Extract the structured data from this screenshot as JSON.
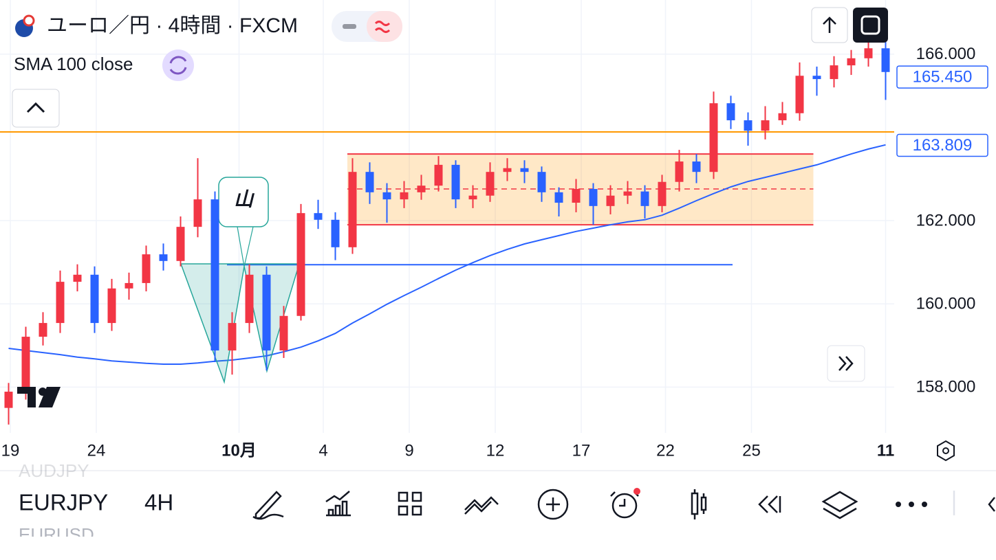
{
  "header": {
    "title": "ユーロ／円 · 4時間 · FXCM"
  },
  "toolbar": {
    "symbol": "EURJPY",
    "interval": "4H",
    "watchlist": [
      "AUDJPY",
      "EURUSD"
    ]
  },
  "chart_data": {
    "type": "candlestick",
    "up_color": "#f23645",
    "down_color": "#2962ff",
    "grid": true,
    "ylim": [
      156.9,
      167.3
    ],
    "yticks": [
      {
        "value": 158,
        "label": "158.000"
      },
      {
        "value": 160,
        "label": "160.000"
      },
      {
        "value": 162,
        "label": "162.000"
      },
      {
        "value": 166,
        "label": "166.000"
      }
    ],
    "xlim": [
      -0.5,
      51.5
    ],
    "xticks": [
      {
        "value": 0.1,
        "label": "19"
      },
      {
        "value": 5.1,
        "label": "24"
      },
      {
        "value": 13.4,
        "label": "10月",
        "strong": true
      },
      {
        "value": 18.3,
        "label": "4"
      },
      {
        "value": 23.3,
        "label": "9"
      },
      {
        "value": 28.3,
        "label": "12"
      },
      {
        "value": 33.3,
        "label": "17"
      },
      {
        "value": 38.2,
        "label": "22"
      },
      {
        "value": 43.2,
        "label": "25"
      },
      {
        "value": 51.0,
        "label": "11",
        "strong": true
      }
    ],
    "open": [
      157.5,
      157.89,
      159.21,
      159.54,
      160.53,
      160.7,
      159.54,
      160.37,
      160.5,
      161.19,
      161.03,
      161.85,
      162.51,
      158.88,
      159.54,
      160.7,
      158.88,
      159.71,
      162.18,
      162.02,
      161.36,
      163.17,
      162.68,
      162.51,
      162.68,
      162.84,
      163.34,
      162.51,
      162.6,
      163.17,
      163.26,
      163.17,
      162.68,
      162.43,
      162.76,
      162.35,
      162.6,
      162.7,
      162.35,
      162.93,
      163.42,
      163.17,
      164.82,
      164.41,
      164.16,
      164.41,
      164.58,
      165.48,
      165.4,
      165.73,
      165.9,
      166.14
    ],
    "high": [
      158.1,
      159.45,
      159.8,
      160.8,
      160.95,
      160.9,
      160.6,
      160.75,
      161.4,
      161.45,
      162.1,
      163.5,
      162.7,
      159.8,
      160.95,
      160.9,
      159.95,
      162.4,
      162.5,
      162.2,
      163.5,
      163.4,
      162.9,
      162.95,
      163.1,
      163.55,
      163.45,
      162.85,
      163.4,
      163.5,
      163.45,
      163.3,
      162.8,
      163.0,
      162.9,
      162.85,
      162.95,
      162.85,
      163.1,
      163.7,
      163.6,
      165.1,
      165.0,
      164.6,
      164.75,
      164.85,
      165.8,
      165.7,
      165.95,
      166.1,
      166.4,
      166.45
    ],
    "low": [
      157.1,
      157.7,
      159.0,
      159.3,
      160.3,
      159.3,
      159.35,
      160.1,
      160.3,
      160.8,
      160.9,
      161.6,
      158.6,
      158.3,
      159.3,
      158.4,
      158.7,
      159.6,
      161.8,
      161.05,
      161.2,
      162.4,
      161.95,
      162.3,
      162.5,
      162.7,
      162.3,
      162.3,
      162.45,
      162.95,
      162.9,
      162.45,
      162.1,
      162.2,
      161.9,
      162.15,
      162.4,
      162.05,
      162.2,
      162.7,
      162.9,
      163.0,
      164.2,
      163.8,
      163.95,
      164.3,
      164.4,
      165.0,
      165.2,
      165.5,
      165.7,
      164.9
    ],
    "close": [
      157.89,
      159.21,
      159.54,
      160.53,
      160.7,
      159.54,
      160.37,
      160.5,
      161.19,
      161.03,
      161.85,
      162.51,
      158.88,
      159.54,
      160.7,
      158.88,
      159.71,
      162.18,
      162.02,
      161.36,
      163.17,
      162.68,
      162.51,
      162.68,
      162.84,
      163.34,
      162.51,
      162.6,
      163.17,
      163.26,
      163.17,
      162.68,
      162.43,
      162.76,
      162.35,
      162.6,
      162.7,
      162.35,
      162.93,
      163.42,
      163.17,
      164.82,
      164.41,
      164.16,
      164.41,
      164.58,
      165.48,
      165.4,
      165.73,
      165.9,
      166.14,
      165.57
    ],
    "sma": {
      "name": "SMA 100 close",
      "color": "#2962ff",
      "values": [
        158.93,
        158.88,
        158.83,
        158.78,
        158.72,
        158.68,
        158.63,
        158.6,
        158.57,
        158.55,
        158.55,
        158.58,
        158.62,
        158.65,
        158.7,
        158.75,
        158.85,
        158.96,
        159.11,
        159.29,
        159.54,
        159.76,
        159.99,
        160.2,
        160.4,
        160.61,
        160.81,
        160.99,
        161.16,
        161.31,
        161.44,
        161.54,
        161.64,
        161.74,
        161.82,
        161.9,
        161.97,
        162.02,
        162.13,
        162.3,
        162.48,
        162.65,
        162.81,
        162.94,
        163.04,
        163.14,
        163.24,
        163.34,
        163.47,
        163.6,
        163.72,
        163.82
      ]
    },
    "lines": [
      {
        "value": 164.13,
        "color": "#ff9800"
      },
      {
        "value": 160.94,
        "from": 12.7,
        "to": 42.1,
        "color": "#2962ff"
      }
    ],
    "range_box": {
      "from": 19.7,
      "to": 46.8,
      "low": 161.9,
      "high": 163.6,
      "mid": 162.76
    },
    "annotation": "山",
    "price_tags": [
      {
        "value": 165.45,
        "label": "165.450"
      },
      {
        "value": 163.809,
        "label": "163.809"
      }
    ]
  }
}
